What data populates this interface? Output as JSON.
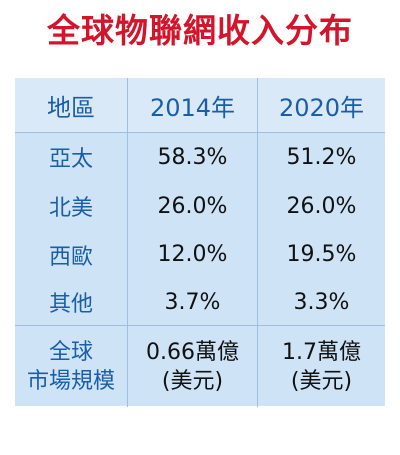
{
  "title": "全球物聯網收入分布",
  "colors": {
    "title": "#d3142b",
    "header_text": "#1a5ea8",
    "table_bg": "#cfe3f7",
    "value_text": "#111111"
  },
  "table": {
    "headers": [
      "地區",
      "2014年",
      "2020年"
    ],
    "rows": [
      {
        "region": "亞太",
        "y2014": "58.3%",
        "y2020": "51.2%"
      },
      {
        "region": "北美",
        "y2014": "26.0%",
        "y2020": "26.0%"
      },
      {
        "region": "西歐",
        "y2014": "12.0%",
        "y2020": "19.5%"
      },
      {
        "region": "其他",
        "y2014": "3.7%",
        "y2020": "3.3%"
      }
    ],
    "market": {
      "label_line1": "全球",
      "label_line2": "市場規模",
      "y2014_line1": "0.66萬億",
      "y2014_line2": "(美元)",
      "y2020_line1": "1.7萬億",
      "y2020_line2": "(美元)"
    }
  }
}
